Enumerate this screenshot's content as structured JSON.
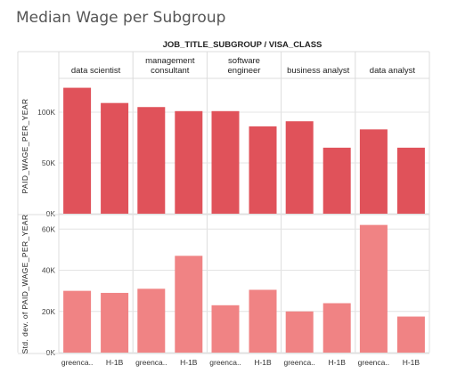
{
  "title": "Median Wage per Subgroup",
  "chart_data": {
    "type": "bar",
    "header_title": "JOB_TITLE_SUBGROUP / VISA_CLASS",
    "groups": [
      {
        "label": "data scientist"
      },
      {
        "label": "management consultant",
        "lines": [
          "management",
          "consultant"
        ]
      },
      {
        "label": "software engineer",
        "lines": [
          "software",
          "engineer"
        ]
      },
      {
        "label": "business analyst"
      },
      {
        "label": "data analyst"
      }
    ],
    "categories": [
      "greencard",
      "H-1B"
    ],
    "category_display": [
      "greenca..",
      "H-1B"
    ],
    "panels": [
      {
        "ylabel": "PAID_WAGE_PER_YEAR",
        "ylim": [
          0,
          128000
        ],
        "ticks": [
          0,
          50000,
          100000
        ],
        "tick_labels": [
          "0K",
          "50K",
          "100K"
        ],
        "color": "#e0525a",
        "values": [
          [
            124000,
            109000
          ],
          [
            105000,
            101000
          ],
          [
            101000,
            86000
          ],
          [
            91000,
            65000
          ],
          [
            83000,
            65000
          ]
        ]
      },
      {
        "ylabel": "Std. dev. of PAID_WAGE_PER_YEAR",
        "ylim": [
          0,
          64000
        ],
        "ticks": [
          0,
          20000,
          40000,
          60000
        ],
        "tick_labels": [
          "0K",
          "20K",
          "40K",
          "60K"
        ],
        "color": "#f08384",
        "values": [
          [
            30000,
            29000
          ],
          [
            31000,
            47000
          ],
          [
            23000,
            30500
          ],
          [
            20000,
            24000
          ],
          [
            62000,
            17500
          ]
        ]
      }
    ],
    "grid": true,
    "legend": "none"
  }
}
